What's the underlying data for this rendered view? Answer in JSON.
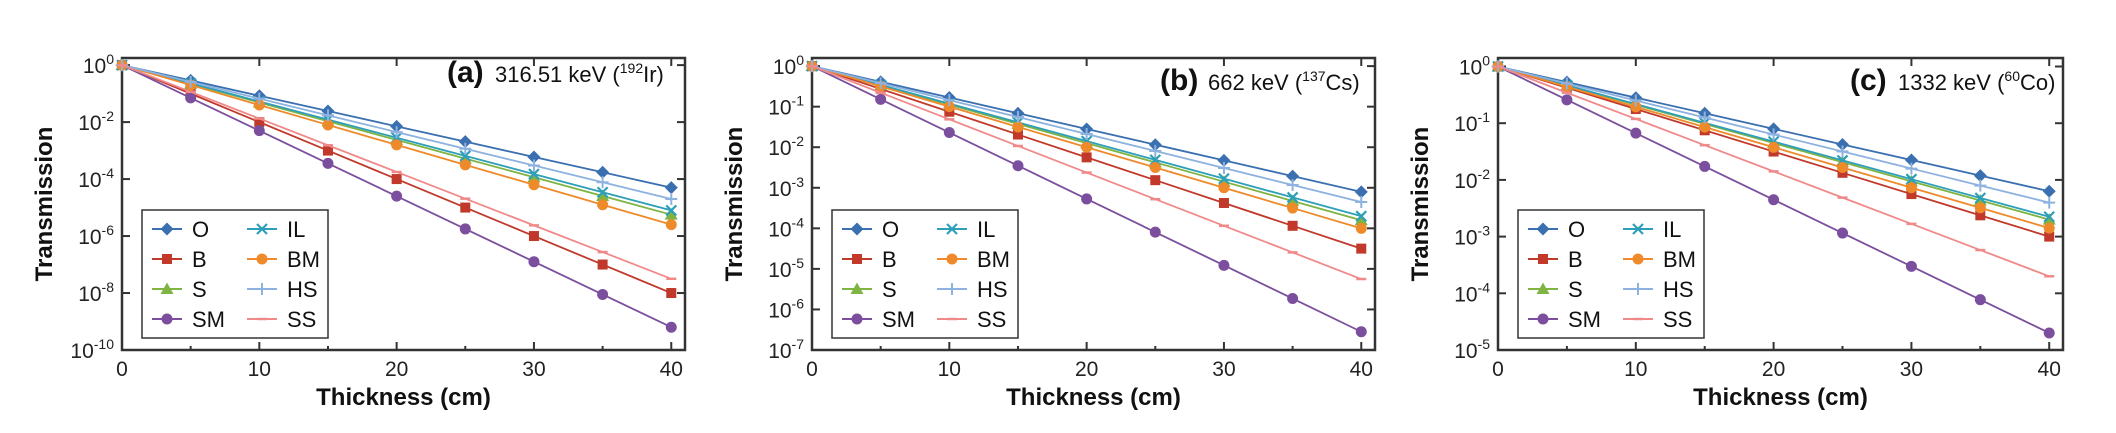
{
  "chart_data": [
    {
      "type": "line",
      "panel_label": "(a)",
      "energy_text": "316.51 keV (",
      "isotope_sup": "192",
      "isotope": "Ir)",
      "xlabel": "Thickness (cm)",
      "ylabel": "Transmission",
      "xlim": [
        0,
        41
      ],
      "ylim_log10": [
        -10,
        0.25
      ],
      "x_ticks": [
        0,
        10,
        20,
        30,
        40
      ],
      "x_tick_labels": [
        "0",
        "10",
        "20",
        "30",
        "40"
      ],
      "y_ticks_exp": [
        0,
        -2,
        -4,
        -6,
        -8,
        -10
      ],
      "y_tick_base": "10",
      "y_tick_exps": [
        "0",
        "-2",
        "-4",
        "-6",
        "-8",
        "-10"
      ],
      "x": [
        0,
        5,
        10,
        15,
        20,
        25,
        30,
        35,
        40
      ],
      "series": [
        {
          "name": "O",
          "color": "#3a6fb0",
          "marker": "diamond",
          "end_log10": -4.3
        },
        {
          "name": "B",
          "color": "#c0392b",
          "marker": "square",
          "end_log10": -8.0
        },
        {
          "name": "S",
          "color": "#7fb342",
          "marker": "triangle",
          "end_log10": -5.25
        },
        {
          "name": "SM",
          "color": "#7b4f9d",
          "marker": "circle",
          "end_log10": -9.2
        },
        {
          "name": "IL",
          "color": "#2e9fb8",
          "marker": "x",
          "end_log10": -5.1
        },
        {
          "name": "BM",
          "color": "#ee8a2a",
          "marker": "circle",
          "end_log10": -5.6
        },
        {
          "name": "HS",
          "color": "#8db2e0",
          "marker": "plus",
          "end_log10": -4.7
        },
        {
          "name": "SS",
          "color": "#f08a8a",
          "marker": "dash",
          "end_log10": -7.5
        }
      ]
    },
    {
      "type": "line",
      "panel_label": "(b)",
      "energy_text": "662 keV (",
      "isotope_sup": "137",
      "isotope": "Cs)",
      "xlabel": "Thickness (cm)",
      "ylabel": "Transmission",
      "xlim": [
        0,
        41
      ],
      "ylim_log10": [
        -7,
        0.2
      ],
      "x_ticks": [
        0,
        10,
        20,
        30,
        40
      ],
      "x_tick_labels": [
        "0",
        "10",
        "20",
        "30",
        "40"
      ],
      "y_ticks_exp": [
        0,
        -1,
        -2,
        -3,
        -4,
        -5,
        -6,
        -7
      ],
      "y_tick_base": "10",
      "y_tick_exps": [
        "0",
        "-1",
        "-2",
        "-3",
        "-4",
        "-5",
        "-6",
        "-7"
      ],
      "x": [
        0,
        5,
        10,
        15,
        20,
        25,
        30,
        35,
        40
      ],
      "series": [
        {
          "name": "O",
          "color": "#3a6fb0",
          "marker": "diamond",
          "end_log10": -3.1
        },
        {
          "name": "B",
          "color": "#c0392b",
          "marker": "square",
          "end_log10": -4.5
        },
        {
          "name": "S",
          "color": "#7fb342",
          "marker": "triangle",
          "end_log10": -3.8
        },
        {
          "name": "SM",
          "color": "#7b4f9d",
          "marker": "circle",
          "end_log10": -6.55
        },
        {
          "name": "IL",
          "color": "#2e9fb8",
          "marker": "x",
          "end_log10": -3.7
        },
        {
          "name": "BM",
          "color": "#ee8a2a",
          "marker": "circle",
          "end_log10": -4.0
        },
        {
          "name": "HS",
          "color": "#8db2e0",
          "marker": "plus",
          "end_log10": -3.35
        },
        {
          "name": "SS",
          "color": "#f08a8a",
          "marker": "dash",
          "end_log10": -5.25
        }
      ]
    },
    {
      "type": "line",
      "panel_label": "(c)",
      "energy_text": "1332 keV (",
      "isotope_sup": "60",
      "isotope": "Co)",
      "xlabel": "Thickness (cm)",
      "ylabel": "Transmission",
      "xlim": [
        0,
        41
      ],
      "ylim_log10": [
        -5,
        0.15
      ],
      "x_ticks": [
        0,
        10,
        20,
        30,
        40
      ],
      "x_tick_labels": [
        "0",
        "10",
        "20",
        "30",
        "40"
      ],
      "y_ticks_exp": [
        0,
        -1,
        -2,
        -3,
        -4,
        -5
      ],
      "y_tick_base": "10",
      "y_tick_exps": [
        "0",
        "-1",
        "-2",
        "-3",
        "-4",
        "-5"
      ],
      "x": [
        0,
        5,
        10,
        15,
        20,
        25,
        30,
        35,
        40
      ],
      "series": [
        {
          "name": "O",
          "color": "#3a6fb0",
          "marker": "diamond",
          "end_log10": -2.2
        },
        {
          "name": "B",
          "color": "#c0392b",
          "marker": "square",
          "end_log10": -3.0
        },
        {
          "name": "S",
          "color": "#7fb342",
          "marker": "triangle",
          "end_log10": -2.7
        },
        {
          "name": "SM",
          "color": "#7b4f9d",
          "marker": "circle",
          "end_log10": -4.7
        },
        {
          "name": "IL",
          "color": "#2e9fb8",
          "marker": "x",
          "end_log10": -2.65
        },
        {
          "name": "BM",
          "color": "#ee8a2a",
          "marker": "circle",
          "end_log10": -2.85
        },
        {
          "name": "HS",
          "color": "#8db2e0",
          "marker": "plus",
          "end_log10": -2.4
        },
        {
          "name": "SS",
          "color": "#f08a8a",
          "marker": "dash",
          "end_log10": -3.7
        }
      ]
    }
  ]
}
